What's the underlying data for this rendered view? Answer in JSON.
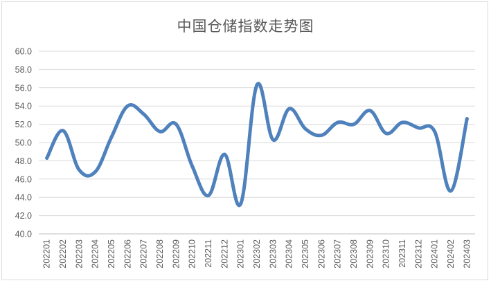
{
  "chart_data": {
    "type": "line",
    "title": "中国仓储指数走势图",
    "xlabel": "",
    "ylabel": "",
    "ylim": [
      40.0,
      60.0
    ],
    "yticks": [
      "40.0",
      "42.0",
      "44.0",
      "46.0",
      "48.0",
      "50.0",
      "52.0",
      "54.0",
      "56.0",
      "58.0",
      "60.0"
    ],
    "grid": true,
    "legend": "none",
    "series_color": "#4f81bd",
    "categories": [
      "202201",
      "202202",
      "202203",
      "202204",
      "202205",
      "202206",
      "202207",
      "202208",
      "202209",
      "202210",
      "202211",
      "202212",
      "202301",
      "202302",
      "202303",
      "202304",
      "202305",
      "202306",
      "202307",
      "202308",
      "202309",
      "202310",
      "202311",
      "202312",
      "202401",
      "202402",
      "202403"
    ],
    "series": [
      {
        "values": [
          48.3,
          51.3,
          47.0,
          46.8,
          50.6,
          54.0,
          53.1,
          51.2,
          52.0,
          47.4,
          44.2,
          48.7,
          43.3,
          56.3,
          50.3,
          53.7,
          51.5,
          50.8,
          52.2,
          52.0,
          53.5,
          51.0,
          52.2,
          51.6,
          51.2,
          44.7,
          52.6
        ]
      }
    ]
  }
}
